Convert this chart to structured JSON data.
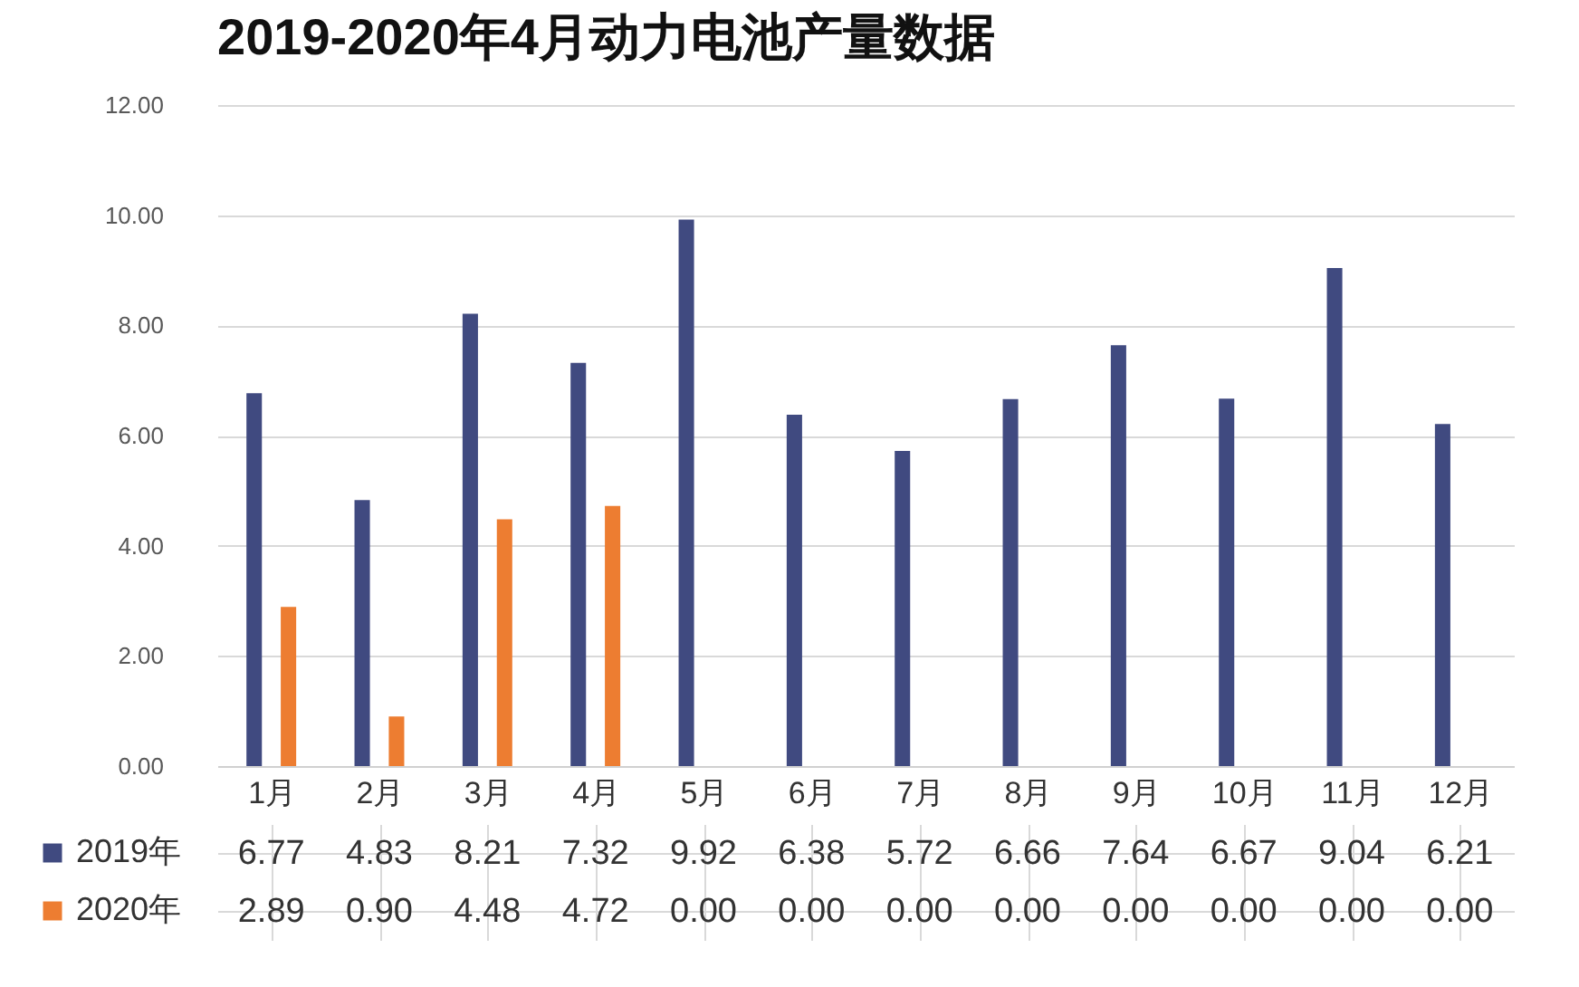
{
  "chart_data": {
    "type": "bar",
    "title": "2019-2020年4月动力电池产量数据",
    "categories": [
      "1月",
      "2月",
      "3月",
      "4月",
      "5月",
      "6月",
      "7月",
      "8月",
      "9月",
      "10月",
      "11月",
      "12月"
    ],
    "series": [
      {
        "name": "2019年",
        "color": "#404a80",
        "values": [
          6.77,
          4.83,
          8.21,
          7.32,
          9.92,
          6.38,
          5.72,
          6.66,
          7.64,
          6.67,
          9.04,
          6.21
        ],
        "value_labels": [
          "6.77",
          "4.83",
          "8.21",
          "7.32",
          "9.92",
          "6.38",
          "5.72",
          "6.66",
          "7.64",
          "6.67",
          "9.04",
          "6.21"
        ]
      },
      {
        "name": "2020年",
        "color": "#ed7d31",
        "values": [
          2.89,
          0.9,
          4.48,
          4.72,
          0.0,
          0.0,
          0.0,
          0.0,
          0.0,
          0.0,
          0.0,
          0.0
        ],
        "value_labels": [
          "2.89",
          "0.90",
          "4.48",
          "4.72",
          "0.00",
          "0.00",
          "0.00",
          "0.00",
          "0.00",
          "0.00",
          "0.00",
          "0.00"
        ]
      }
    ],
    "ylim": [
      0,
      12
    ],
    "yticks": [
      {
        "value": 0,
        "label": "0.00"
      },
      {
        "value": 2,
        "label": "2.00"
      },
      {
        "value": 4,
        "label": "4.00"
      },
      {
        "value": 6,
        "label": "6.00"
      },
      {
        "value": 8,
        "label": "8.00"
      },
      {
        "value": 10,
        "label": "10.00"
      },
      {
        "value": 12,
        "label": "12.00"
      }
    ],
    "grid": "y",
    "legend": "bottom left"
  }
}
